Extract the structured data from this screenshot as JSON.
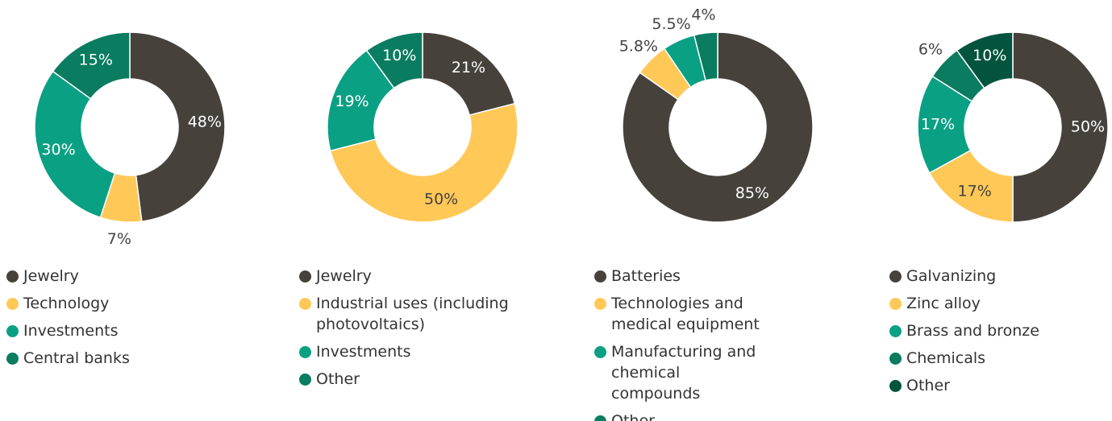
{
  "chart_data": [
    {
      "type": "pie",
      "categories": [
        "Jewelry",
        "Technology",
        "Investments",
        "Central banks"
      ],
      "values": [
        48,
        7,
        30,
        15
      ],
      "value_labels": [
        "48%",
        "7%",
        "30%",
        "15%"
      ],
      "colors": [
        "#47413c",
        "#ffc857",
        "#0aa083",
        "#0a7c60"
      ]
    },
    {
      "type": "pie",
      "categories": [
        "Jewelry",
        "Industrial uses (including photovoltaics)",
        "Investments",
        "Other"
      ],
      "values": [
        21,
        50,
        19,
        10
      ],
      "value_labels": [
        "21%",
        "50%",
        "19%",
        "10%"
      ],
      "colors": [
        "#47413c",
        "#ffc857",
        "#0aa083",
        "#0a7c60"
      ]
    },
    {
      "type": "pie",
      "categories": [
        "Batteries",
        "Technologies and medical equipment",
        "Manufacturing and chemical compounds",
        "Other"
      ],
      "values": [
        85,
        5.8,
        5.5,
        4
      ],
      "value_labels": [
        "85%",
        "5.8%",
        "5.5%",
        "4%"
      ],
      "colors": [
        "#47413c",
        "#ffc857",
        "#0aa083",
        "#0a7c60"
      ]
    },
    {
      "type": "pie",
      "categories": [
        "Galvanizing",
        "Zinc alloy",
        "Brass and bronze",
        "Chemicals",
        "Other"
      ],
      "values": [
        50,
        17,
        17,
        6,
        10
      ],
      "value_labels": [
        "50%",
        "17%",
        "17%",
        "6%",
        "10%"
      ],
      "colors": [
        "#47413c",
        "#ffc857",
        "#0aa083",
        "#0a7c60",
        "#03543e"
      ]
    }
  ]
}
